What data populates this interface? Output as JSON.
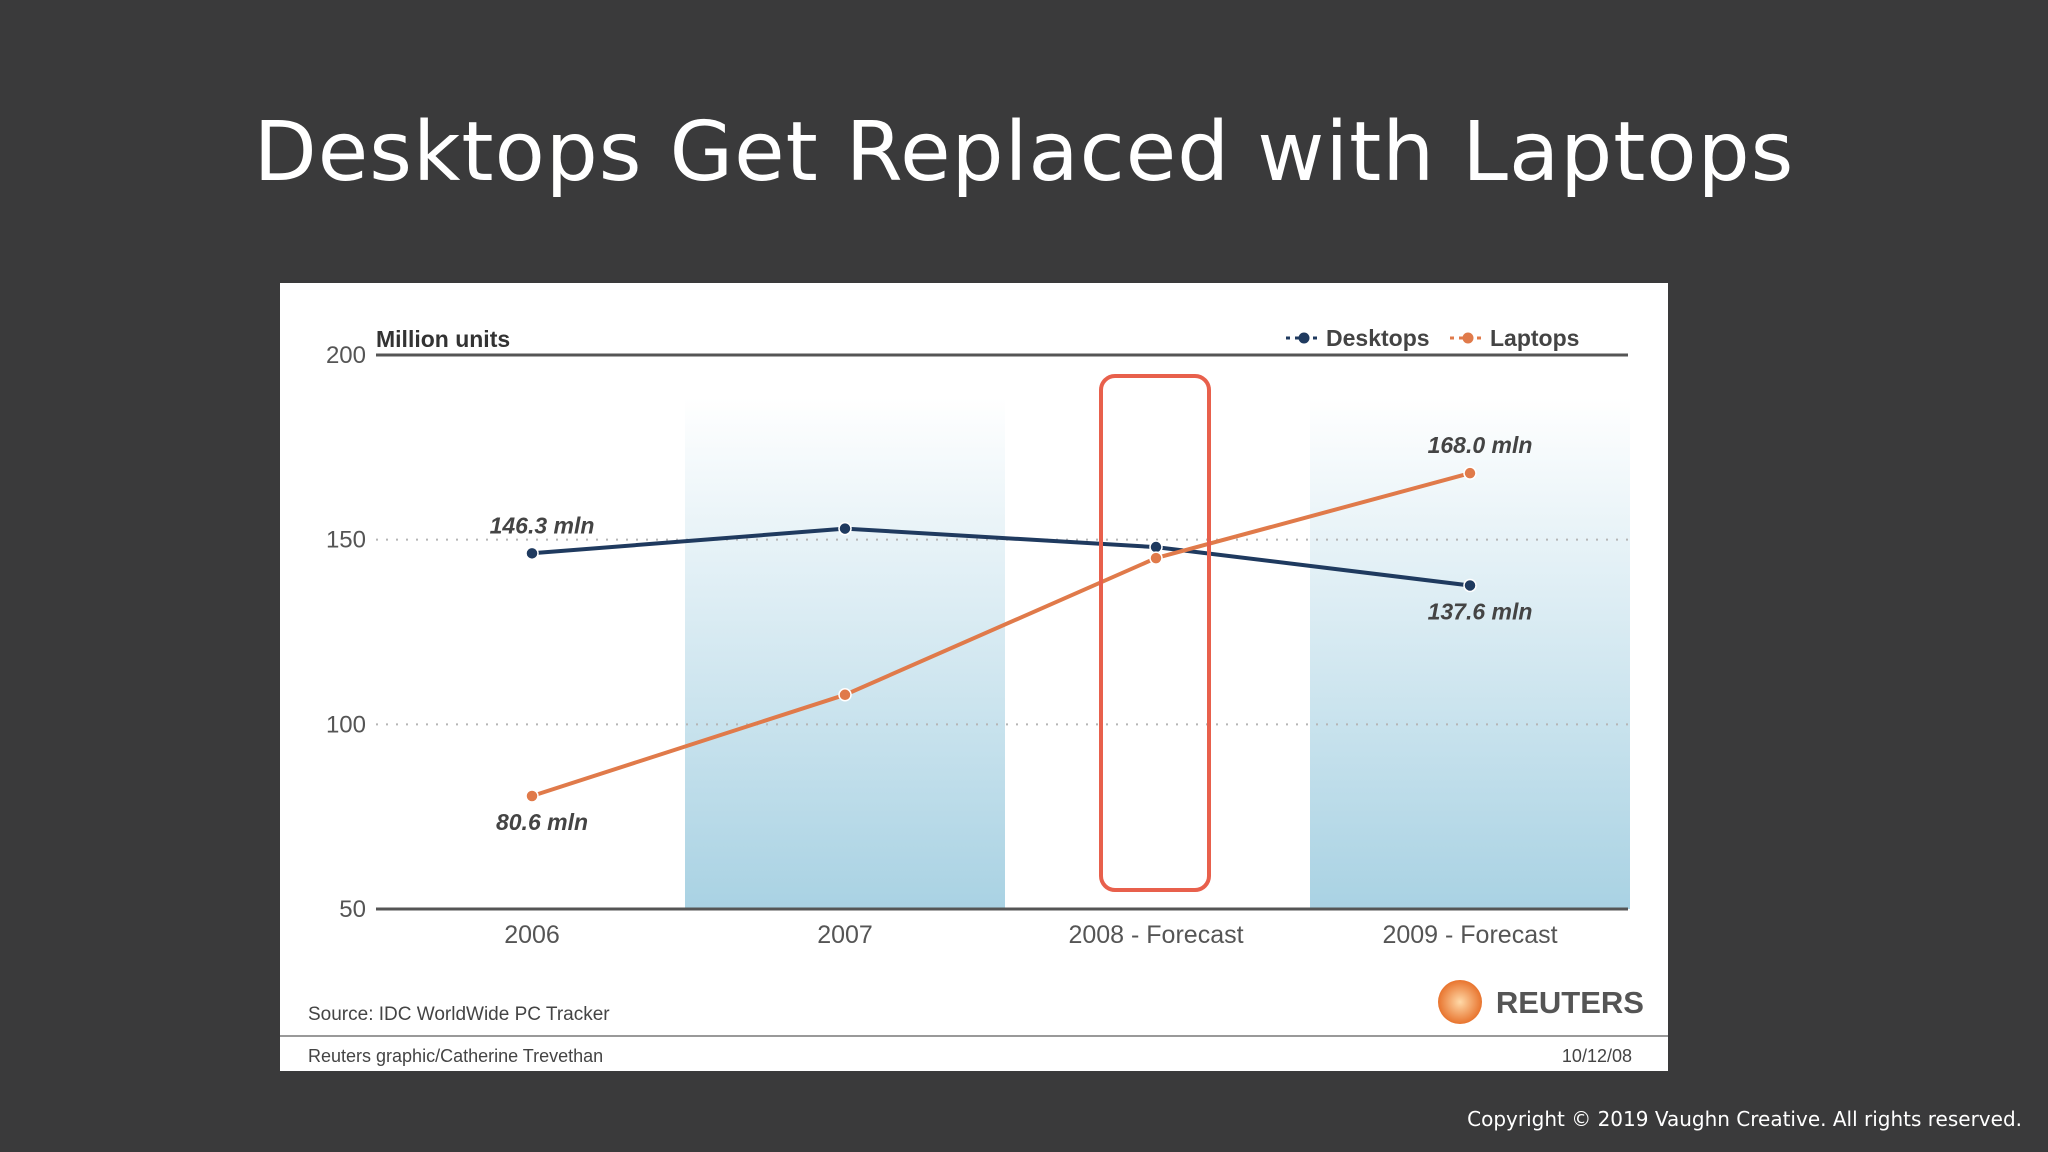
{
  "slide": {
    "title": "Desktops Get Replaced with Laptops",
    "copyright": "Copyright © 2019 Vaughn Creative. All rights reserved."
  },
  "chart_data": {
    "type": "line",
    "ylabel": "Million units",
    "ylim": [
      50,
      200
    ],
    "yticks": [
      "200",
      "150",
      "100",
      "50"
    ],
    "categories": [
      "2006",
      "2007",
      "2008 - Forecast",
      "2009 - Forecast"
    ],
    "series": [
      {
        "name": "Desktops",
        "color": "#1f3a5f",
        "values": [
          146.3,
          153,
          148,
          137.6
        ]
      },
      {
        "name": "Laptops",
        "color": "#e07a4a",
        "values": [
          80.6,
          108,
          145,
          168.0
        ]
      }
    ],
    "annotations": {
      "desktops_2006": "146.3 mln",
      "laptops_2006": "80.6 mln",
      "laptops_2009": "168.0 mln",
      "desktops_2009": "137.6 mln"
    },
    "highlight_category": "2008 - Forecast",
    "highlight_color": "#e8604c",
    "shaded_categories": [
      "2007",
      "2009 - Forecast"
    ],
    "grid": "dotted",
    "legend": "top-right",
    "source": "Source: IDC WorldWide PC Tracker",
    "credit": "Reuters graphic/Catherine Trevethan",
    "date": "10/12/08",
    "logo_text": "REUTERS"
  }
}
